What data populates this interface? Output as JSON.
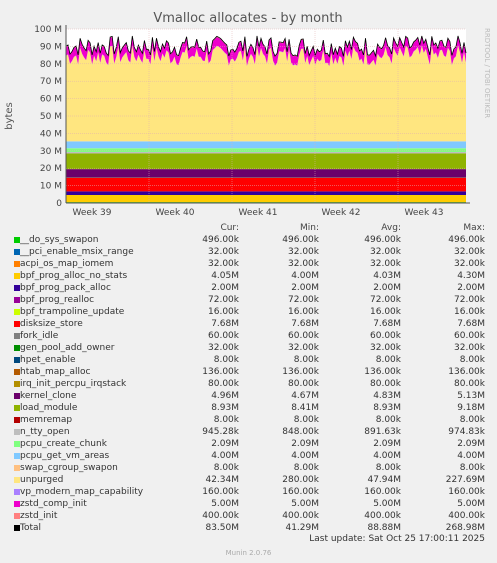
{
  "chart_data": {
    "type": "area",
    "title": "Vmalloc allocates - by month",
    "ylabel": "bytes",
    "xlabel": "",
    "watermark": "RRDTOOL / TOBI OETIKER",
    "ylim": [
      0,
      100000000
    ],
    "y_ticks": [
      {
        "value": 0,
        "label": "0"
      },
      {
        "value": 10000000,
        "label": "10 M"
      },
      {
        "value": 20000000,
        "label": "20 M"
      },
      {
        "value": 30000000,
        "label": "30 M"
      },
      {
        "value": 40000000,
        "label": "40 M"
      },
      {
        "value": 50000000,
        "label": "50 M"
      },
      {
        "value": 60000000,
        "label": "60 M"
      },
      {
        "value": 70000000,
        "label": "70 M"
      },
      {
        "value": 80000000,
        "label": "80 M"
      },
      {
        "value": 90000000,
        "label": "90 M"
      },
      {
        "value": 100000000,
        "label": "100 M"
      }
    ],
    "x_ticks": [
      "Week 39",
      "Week 40",
      "Week 41",
      "Week 42",
      "Week 43"
    ],
    "grid": true,
    "legend_columns": [
      "Cur:",
      "Min:",
      "Avg:",
      "Max:"
    ],
    "series": [
      {
        "name": "__do_sys_swapon",
        "color": "#00cc00",
        "cur": "496.00k",
        "min": "496.00k",
        "avg": "496.00k",
        "max": "496.00k"
      },
      {
        "name": "__pci_enable_msix_range",
        "color": "#0066b3",
        "cur": "32.00k",
        "min": "32.00k",
        "avg": "32.00k",
        "max": "32.00k"
      },
      {
        "name": "acpi_os_map_iomem",
        "color": "#ff8000",
        "cur": "32.00k",
        "min": "32.00k",
        "avg": "32.00k",
        "max": "32.00k"
      },
      {
        "name": "bpf_prog_alloc_no_stats",
        "color": "#ffcc00",
        "cur": "4.05M",
        "min": "4.00M",
        "avg": "4.03M",
        "max": "4.30M"
      },
      {
        "name": "bpf_prog_pack_alloc",
        "color": "#330099",
        "cur": "2.00M",
        "min": "2.00M",
        "avg": "2.00M",
        "max": "2.00M"
      },
      {
        "name": "bpf_prog_realloc",
        "color": "#990099",
        "cur": "72.00k",
        "min": "72.00k",
        "avg": "72.00k",
        "max": "72.00k"
      },
      {
        "name": "bpf_trampoline_update",
        "color": "#ccff00",
        "cur": "16.00k",
        "min": "16.00k",
        "avg": "16.00k",
        "max": "16.00k"
      },
      {
        "name": "disksize_store",
        "color": "#ff0000",
        "cur": "7.68M",
        "min": "7.68M",
        "avg": "7.68M",
        "max": "7.68M"
      },
      {
        "name": "fork_idle",
        "color": "#808080",
        "cur": "60.00k",
        "min": "60.00k",
        "avg": "60.00k",
        "max": "60.00k"
      },
      {
        "name": "gen_pool_add_owner",
        "color": "#008f00",
        "cur": "32.00k",
        "min": "32.00k",
        "avg": "32.00k",
        "max": "32.00k"
      },
      {
        "name": "hpet_enable",
        "color": "#00487d",
        "cur": "8.00k",
        "min": "8.00k",
        "avg": "8.00k",
        "max": "8.00k"
      },
      {
        "name": "htab_map_alloc",
        "color": "#b35a00",
        "cur": "136.00k",
        "min": "136.00k",
        "avg": "136.00k",
        "max": "136.00k"
      },
      {
        "name": "irq_init_percpu_irqstack",
        "color": "#b38f00",
        "cur": "80.00k",
        "min": "80.00k",
        "avg": "80.00k",
        "max": "80.00k"
      },
      {
        "name": "kernel_clone",
        "color": "#6b006b",
        "cur": "4.96M",
        "min": "4.67M",
        "avg": "4.83M",
        "max": "5.13M"
      },
      {
        "name": "load_module",
        "color": "#8fb300",
        "cur": "8.93M",
        "min": "8.41M",
        "avg": "8.93M",
        "max": "9.18M"
      },
      {
        "name": "memremap",
        "color": "#b30000",
        "cur": "8.00k",
        "min": "8.00k",
        "avg": "8.00k",
        "max": "8.00k"
      },
      {
        "name": "n_tty_open",
        "color": "#bebebe",
        "cur": "945.28k",
        "min": "848.00k",
        "avg": "891.63k",
        "max": "974.83k"
      },
      {
        "name": "pcpu_create_chunk",
        "color": "#80ff80",
        "cur": "2.09M",
        "min": "2.09M",
        "avg": "2.09M",
        "max": "2.09M"
      },
      {
        "name": "pcpu_get_vm_areas",
        "color": "#80c9ff",
        "cur": "4.00M",
        "min": "4.00M",
        "avg": "4.00M",
        "max": "4.00M"
      },
      {
        "name": "swap_cgroup_swapon",
        "color": "#ffc080",
        "cur": "8.00k",
        "min": "8.00k",
        "avg": "8.00k",
        "max": "8.00k"
      },
      {
        "name": "unpurged",
        "color": "#ffe680",
        "cur": "42.34M",
        "min": "280.00k",
        "avg": "47.94M",
        "max": "227.69M"
      },
      {
        "name": "vp_modern_map_capability",
        "color": "#aa80ff",
        "cur": "160.00k",
        "min": "160.00k",
        "avg": "160.00k",
        "max": "160.00k"
      },
      {
        "name": "zstd_comp_init",
        "color": "#ee00cc",
        "cur": "5.00M",
        "min": "5.00M",
        "avg": "5.00M",
        "max": "5.00M"
      },
      {
        "name": "zstd_init",
        "color": "#ff8080",
        "cur": "400.00k",
        "min": "400.00k",
        "avg": "400.00k",
        "max": "400.00k"
      },
      {
        "name": "Total",
        "color": "#000000",
        "cur": "83.50M",
        "min": "41.29M",
        "avg": "88.88M",
        "max": "268.98M"
      }
    ]
  },
  "last_update": "Last update: Sat Oct 25 17:00:11 2025",
  "footer": "Munin 2.0.76"
}
